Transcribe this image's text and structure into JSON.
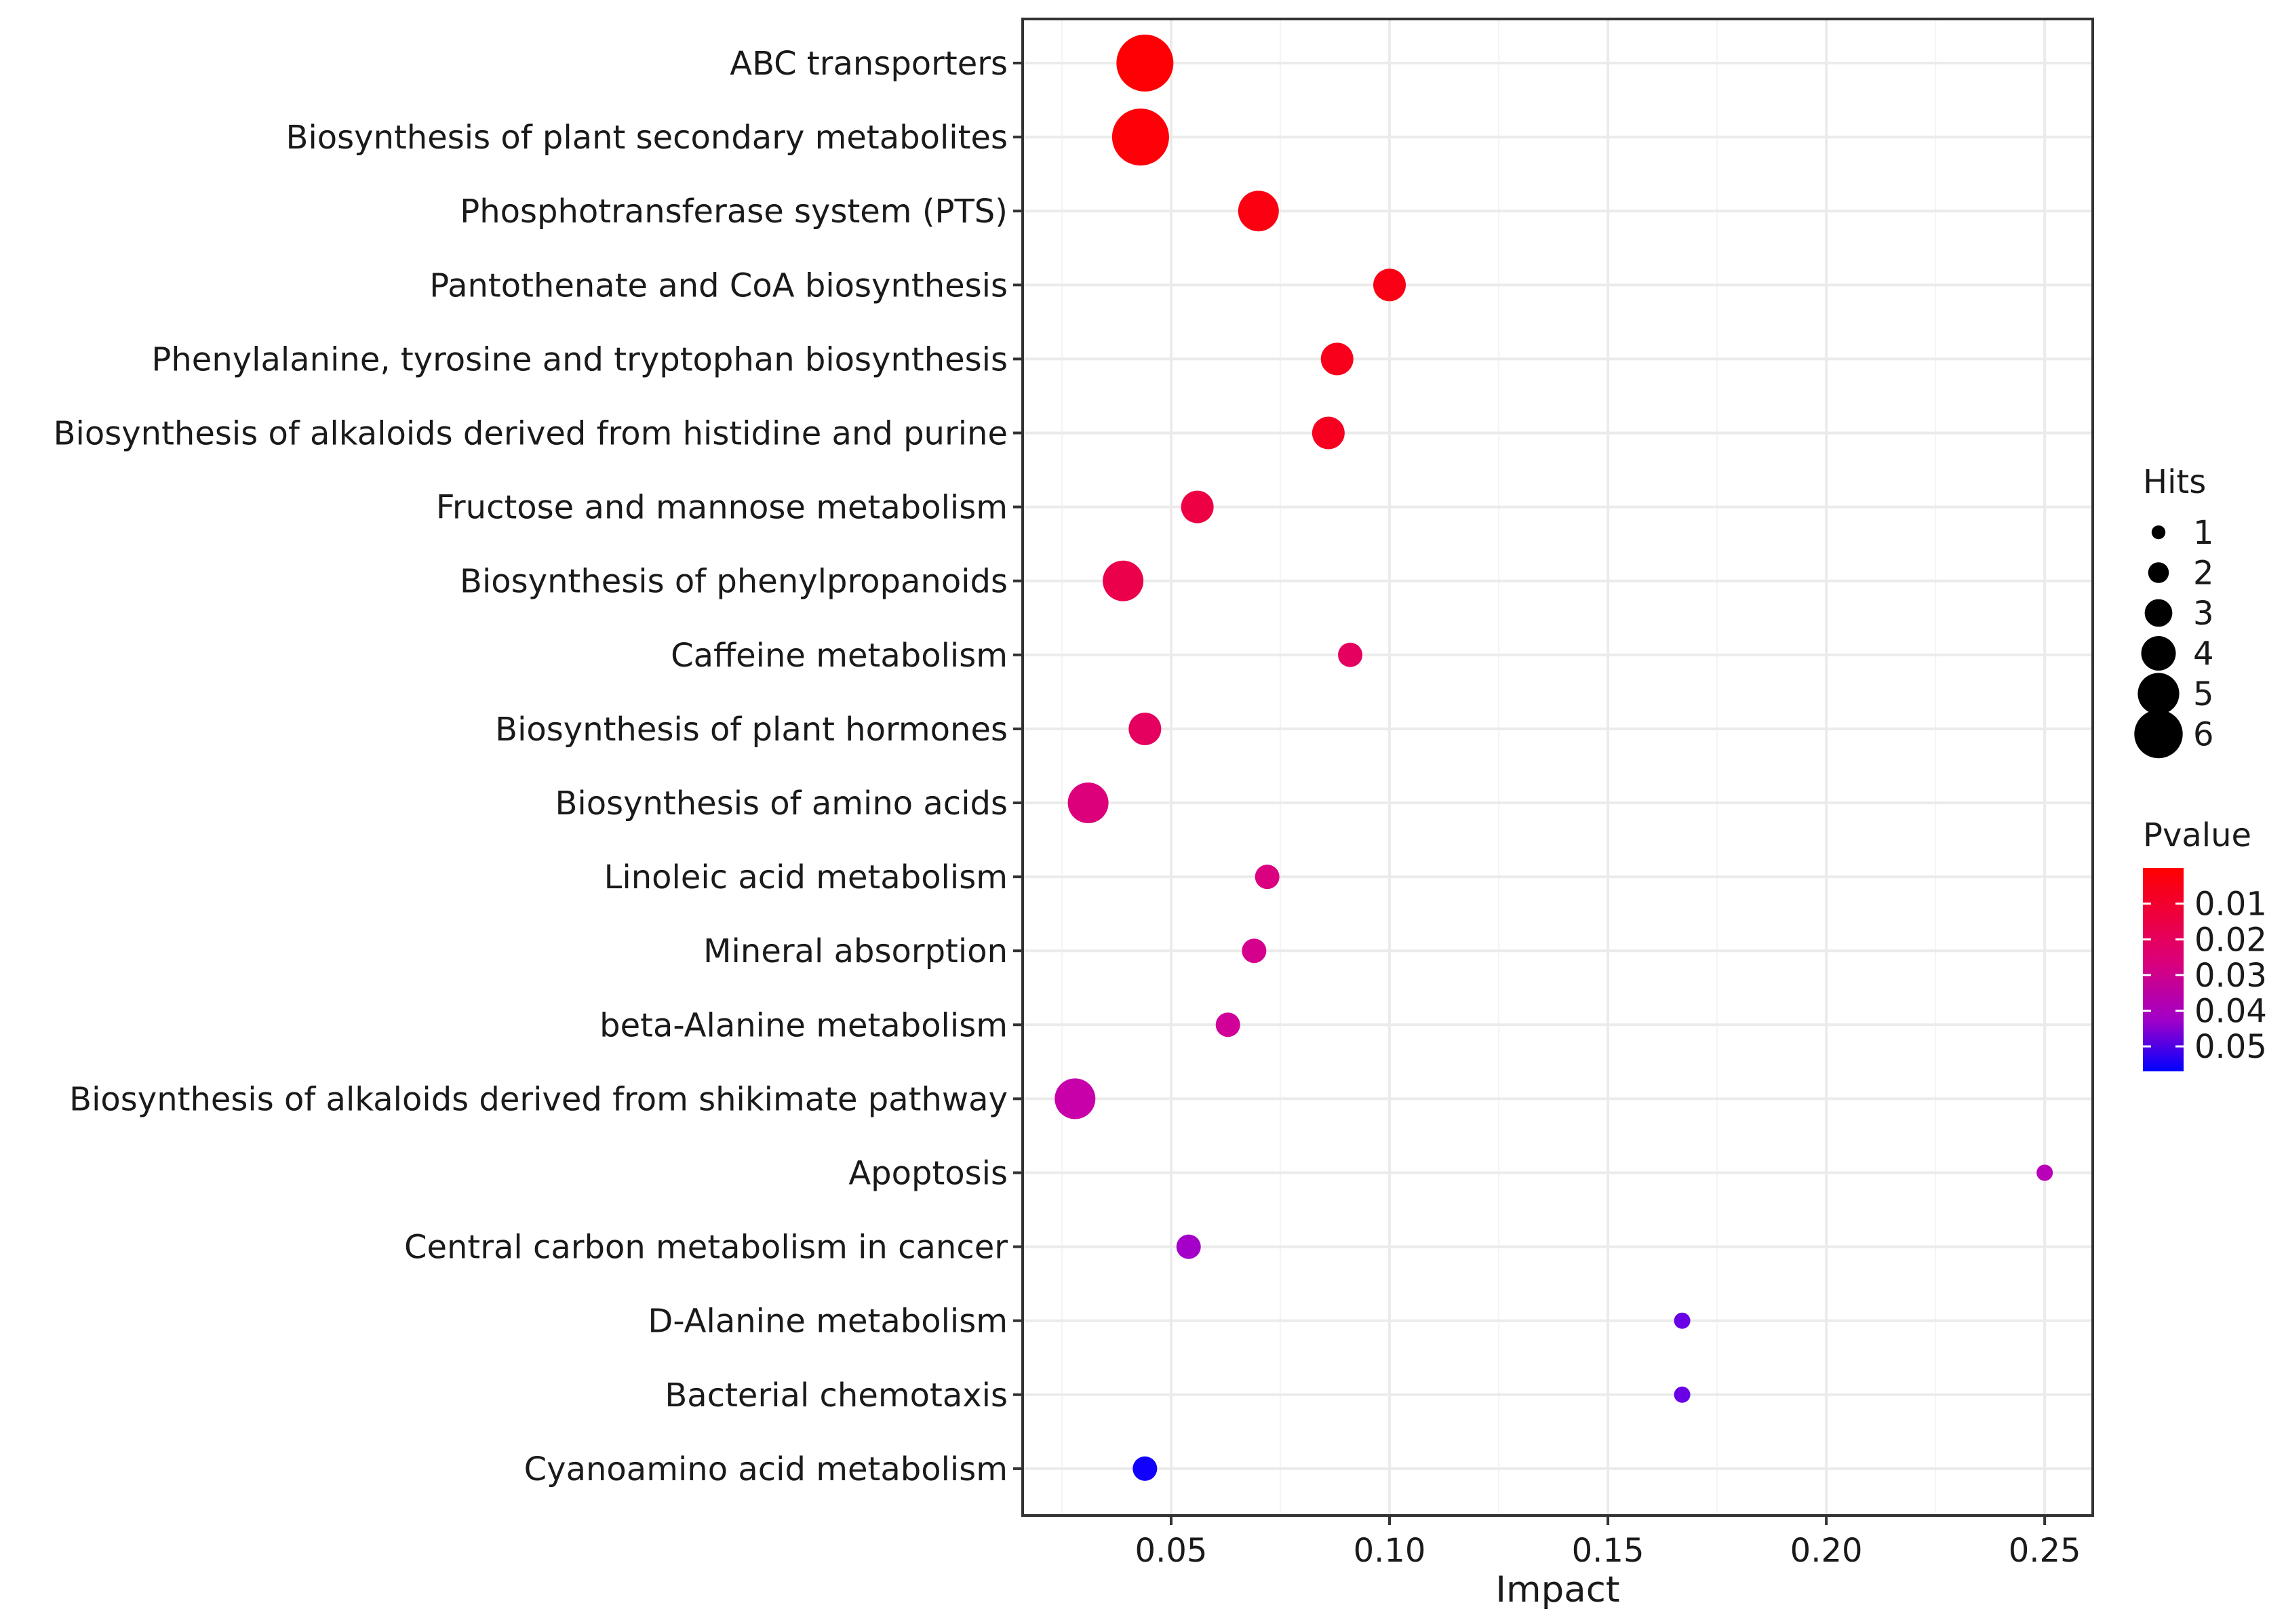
{
  "chart_data": {
    "type": "scatter",
    "title": "",
    "xlabel": "Impact",
    "ylabel": "",
    "xlim": [
      0.016,
      0.261
    ],
    "xticks": [
      0.05,
      0.1,
      0.15,
      0.2,
      0.25
    ],
    "xtick_labels": [
      "0.05",
      "0.10",
      "0.15",
      "0.20",
      "0.25"
    ],
    "grid": true,
    "categories": [
      "ABC transporters",
      "Biosynthesis of plant secondary metabolites",
      "Phosphotransferase system (PTS)",
      "Pantothenate and CoA biosynthesis",
      "Phenylalanine, tyrosine and tryptophan biosynthesis",
      "Biosynthesis of alkaloids derived from histidine and purine",
      "Fructose and mannose metabolism",
      "Biosynthesis of phenylpropanoids",
      "Caffeine metabolism",
      "Biosynthesis of plant hormones",
      "Biosynthesis of amino acids",
      "Linoleic acid metabolism",
      "Mineral absorption",
      "beta-Alanine metabolism",
      "Biosynthesis of alkaloids derived from shikimate pathway",
      "Apoptosis",
      "Central carbon metabolism in cancer",
      "D-Alanine metabolism",
      "Bacterial chemotaxis",
      "Cyanoamino acid metabolism"
    ],
    "points": [
      {
        "impact": 0.044,
        "hits": 6,
        "pvalue": 0.001
      },
      {
        "impact": 0.043,
        "hits": 6,
        "pvalue": 0.002
      },
      {
        "impact": 0.07,
        "hits": 4,
        "pvalue": 0.004
      },
      {
        "impact": 0.1,
        "hits": 3,
        "pvalue": 0.005
      },
      {
        "impact": 0.088,
        "hits": 3,
        "pvalue": 0.007
      },
      {
        "impact": 0.086,
        "hits": 3,
        "pvalue": 0.008
      },
      {
        "impact": 0.056,
        "hits": 3,
        "pvalue": 0.014
      },
      {
        "impact": 0.039,
        "hits": 4,
        "pvalue": 0.015
      },
      {
        "impact": 0.091,
        "hits": 2,
        "pvalue": 0.018
      },
      {
        "impact": 0.044,
        "hits": 3,
        "pvalue": 0.018
      },
      {
        "impact": 0.031,
        "hits": 4,
        "pvalue": 0.022
      },
      {
        "impact": 0.072,
        "hits": 2,
        "pvalue": 0.023
      },
      {
        "impact": 0.069,
        "hits": 2,
        "pvalue": 0.025
      },
      {
        "impact": 0.063,
        "hits": 2,
        "pvalue": 0.027
      },
      {
        "impact": 0.028,
        "hits": 4,
        "pvalue": 0.03
      },
      {
        "impact": 0.25,
        "hits": 1,
        "pvalue": 0.033
      },
      {
        "impact": 0.054,
        "hits": 2,
        "pvalue": 0.037
      },
      {
        "impact": 0.167,
        "hits": 1,
        "pvalue": 0.045
      },
      {
        "impact": 0.167,
        "hits": 1,
        "pvalue": 0.045
      },
      {
        "impact": 0.044,
        "hits": 2,
        "pvalue": 0.055
      }
    ],
    "size_legend": {
      "title": "Hits",
      "values": [
        1,
        2,
        3,
        4,
        5,
        6
      ],
      "labels": [
        "1",
        "2",
        "3",
        "4",
        "5",
        "6"
      ]
    },
    "color_legend": {
      "title": "Pvalue",
      "range": [
        0.0,
        0.057
      ],
      "ticks": [
        0.01,
        0.02,
        0.03,
        0.04,
        0.05
      ],
      "tick_labels": [
        "0.01",
        "0.02",
        "0.03",
        "0.04",
        "0.05"
      ],
      "low_color": "#ff0000",
      "high_color": "#0000ff"
    }
  }
}
